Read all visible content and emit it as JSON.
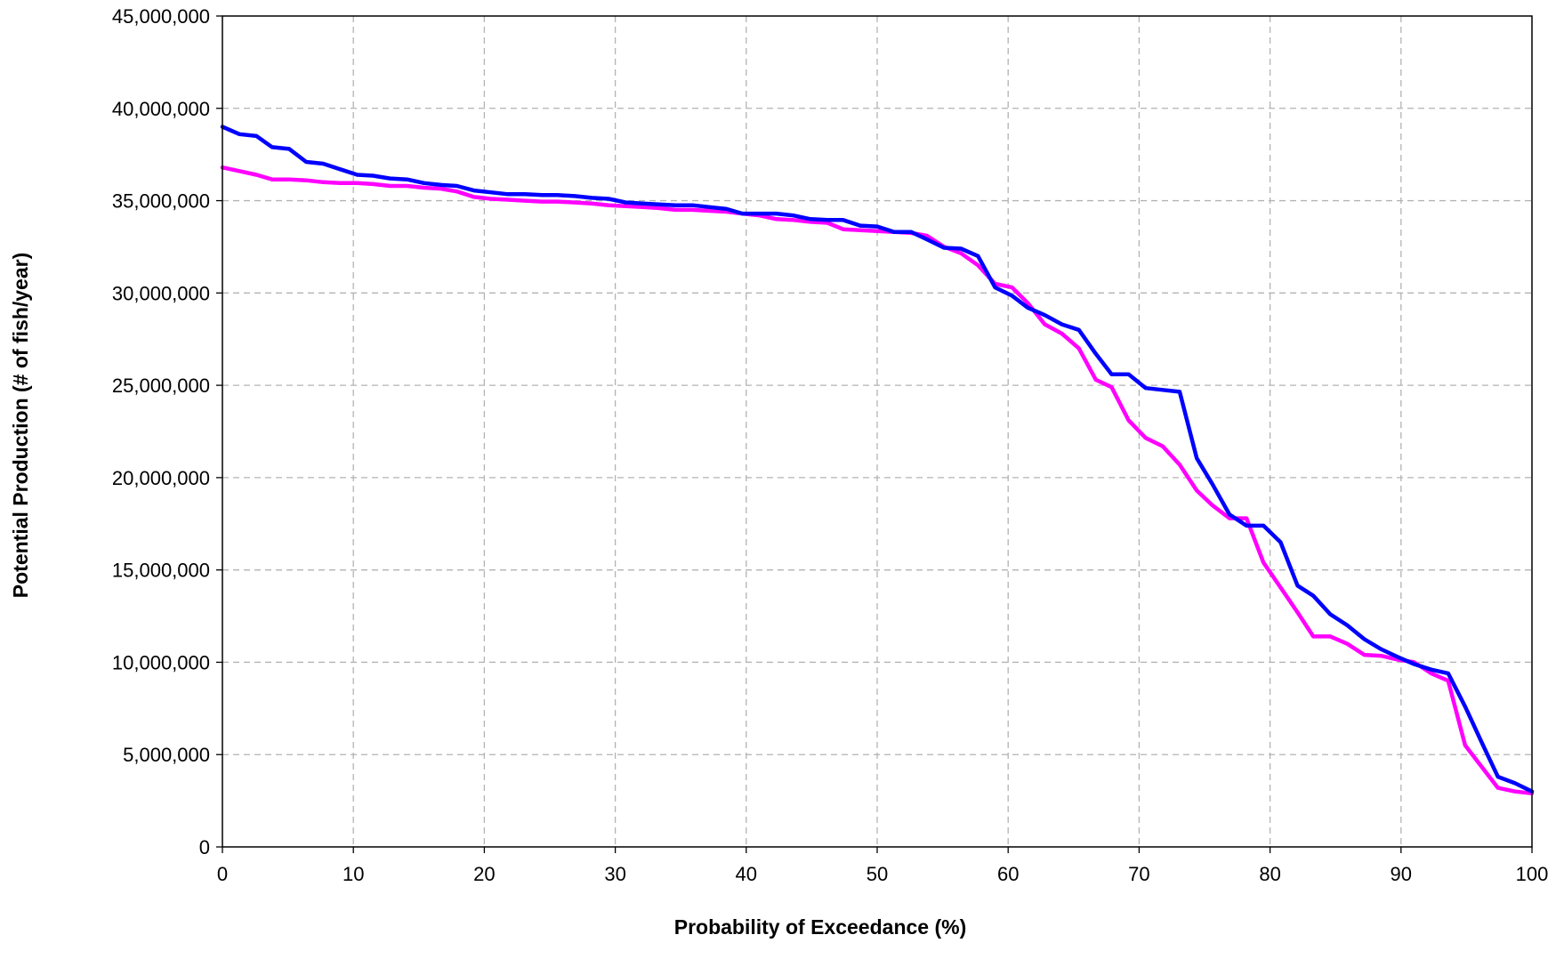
{
  "chart_data": {
    "type": "line",
    "title": "",
    "xlabel": "Probability of Exceedance (%)",
    "ylabel": "Potential Production (# of fish/year)",
    "xlim": [
      0,
      100
    ],
    "ylim": [
      0,
      45000000
    ],
    "xticks": [
      0,
      10,
      20,
      30,
      40,
      50,
      60,
      70,
      80,
      90,
      100
    ],
    "yticks": [
      0,
      5000000,
      10000000,
      15000000,
      20000000,
      25000000,
      30000000,
      35000000,
      40000000,
      45000000
    ],
    "xtick_labels": [
      "0",
      "10",
      "20",
      "30",
      "40",
      "50",
      "60",
      "70",
      "80",
      "90",
      "100"
    ],
    "ytick_labels": [
      "0",
      "5,000,000",
      "10,000,000",
      "15,000,000",
      "20,000,000",
      "25,000,000",
      "30,000,000",
      "35,000,000",
      "40,000,000",
      "45,000,000"
    ],
    "grid": true,
    "legend": "none",
    "series": [
      {
        "color": "#ff00ff",
        "points": [
          [
            0,
            36800000
          ],
          [
            1.3,
            36600000
          ],
          [
            2.6,
            36400000
          ],
          [
            3.8,
            36150000
          ],
          [
            5.1,
            36150000
          ],
          [
            6.4,
            36100000
          ],
          [
            7.7,
            36000000
          ],
          [
            9.0,
            35950000
          ],
          [
            10.3,
            35950000
          ],
          [
            11.5,
            35900000
          ],
          [
            12.8,
            35800000
          ],
          [
            14.1,
            35800000
          ],
          [
            15.4,
            35700000
          ],
          [
            16.7,
            35650000
          ],
          [
            17.9,
            35500000
          ],
          [
            19.2,
            35200000
          ],
          [
            20.5,
            35100000
          ],
          [
            21.8,
            35050000
          ],
          [
            23.1,
            35000000
          ],
          [
            24.4,
            34950000
          ],
          [
            25.6,
            34950000
          ],
          [
            26.9,
            34900000
          ],
          [
            28.2,
            34850000
          ],
          [
            29.5,
            34750000
          ],
          [
            30.8,
            34700000
          ],
          [
            32.1,
            34650000
          ],
          [
            33.3,
            34600000
          ],
          [
            34.6,
            34500000
          ],
          [
            35.9,
            34500000
          ],
          [
            37.2,
            34450000
          ],
          [
            38.5,
            34400000
          ],
          [
            39.7,
            34300000
          ],
          [
            41.0,
            34200000
          ],
          [
            42.3,
            34000000
          ],
          [
            43.6,
            33950000
          ],
          [
            44.9,
            33850000
          ],
          [
            46.2,
            33800000
          ],
          [
            47.4,
            33450000
          ],
          [
            48.7,
            33400000
          ],
          [
            50.0,
            33350000
          ],
          [
            51.3,
            33300000
          ],
          [
            52.6,
            33250000
          ],
          [
            53.8,
            33100000
          ],
          [
            55.1,
            32500000
          ],
          [
            56.4,
            32150000
          ],
          [
            57.7,
            31500000
          ],
          [
            59.0,
            30500000
          ],
          [
            60.3,
            30300000
          ],
          [
            61.5,
            29450000
          ],
          [
            62.8,
            28300000
          ],
          [
            64.1,
            27800000
          ],
          [
            65.4,
            27000000
          ],
          [
            66.7,
            25300000
          ],
          [
            67.9,
            24900000
          ],
          [
            69.2,
            23100000
          ],
          [
            70.5,
            22150000
          ],
          [
            71.8,
            21700000
          ],
          [
            73.1,
            20700000
          ],
          [
            74.4,
            19300000
          ],
          [
            75.6,
            18500000
          ],
          [
            76.9,
            17800000
          ],
          [
            78.2,
            17800000
          ],
          [
            79.5,
            15400000
          ],
          [
            80.8,
            14050000
          ],
          [
            82.1,
            12700000
          ],
          [
            83.3,
            11400000
          ],
          [
            84.6,
            11400000
          ],
          [
            85.9,
            11000000
          ],
          [
            87.2,
            10400000
          ],
          [
            88.5,
            10350000
          ],
          [
            89.7,
            10150000
          ],
          [
            91.0,
            10000000
          ],
          [
            92.3,
            9400000
          ],
          [
            93.6,
            9000000
          ],
          [
            94.9,
            5500000
          ],
          [
            96.2,
            4300000
          ],
          [
            97.4,
            3200000
          ],
          [
            98.7,
            3000000
          ],
          [
            100,
            2900000
          ]
        ]
      },
      {
        "color": "#0000ff",
        "points": [
          [
            0,
            39000000
          ],
          [
            1.3,
            38600000
          ],
          [
            2.6,
            38500000
          ],
          [
            3.8,
            37900000
          ],
          [
            5.1,
            37800000
          ],
          [
            6.4,
            37100000
          ],
          [
            7.7,
            37000000
          ],
          [
            9.0,
            36700000
          ],
          [
            10.3,
            36400000
          ],
          [
            11.5,
            36350000
          ],
          [
            12.8,
            36200000
          ],
          [
            14.1,
            36150000
          ],
          [
            15.4,
            35950000
          ],
          [
            16.7,
            35850000
          ],
          [
            17.9,
            35800000
          ],
          [
            19.2,
            35550000
          ],
          [
            20.5,
            35450000
          ],
          [
            21.8,
            35350000
          ],
          [
            23.1,
            35350000
          ],
          [
            24.4,
            35300000
          ],
          [
            25.6,
            35300000
          ],
          [
            26.9,
            35250000
          ],
          [
            28.2,
            35150000
          ],
          [
            29.5,
            35100000
          ],
          [
            30.8,
            34900000
          ],
          [
            32.1,
            34850000
          ],
          [
            33.3,
            34800000
          ],
          [
            34.6,
            34750000
          ],
          [
            35.9,
            34750000
          ],
          [
            37.2,
            34650000
          ],
          [
            38.5,
            34550000
          ],
          [
            39.7,
            34300000
          ],
          [
            41.0,
            34300000
          ],
          [
            42.3,
            34300000
          ],
          [
            43.6,
            34200000
          ],
          [
            44.9,
            34000000
          ],
          [
            46.2,
            33950000
          ],
          [
            47.4,
            33950000
          ],
          [
            48.7,
            33650000
          ],
          [
            50.0,
            33600000
          ],
          [
            51.3,
            33300000
          ],
          [
            52.6,
            33300000
          ],
          [
            53.8,
            32900000
          ],
          [
            55.1,
            32450000
          ],
          [
            56.4,
            32400000
          ],
          [
            57.7,
            32000000
          ],
          [
            59.0,
            30300000
          ],
          [
            60.3,
            29850000
          ],
          [
            61.5,
            29200000
          ],
          [
            62.8,
            28800000
          ],
          [
            64.1,
            28300000
          ],
          [
            65.4,
            28000000
          ],
          [
            66.7,
            26700000
          ],
          [
            67.9,
            25600000
          ],
          [
            69.2,
            25600000
          ],
          [
            70.5,
            24850000
          ],
          [
            71.8,
            24750000
          ],
          [
            73.1,
            24650000
          ],
          [
            74.4,
            21050000
          ],
          [
            75.6,
            19650000
          ],
          [
            76.9,
            18000000
          ],
          [
            78.2,
            17400000
          ],
          [
            79.5,
            17400000
          ],
          [
            80.8,
            16500000
          ],
          [
            82.1,
            14150000
          ],
          [
            83.3,
            13600000
          ],
          [
            84.6,
            12600000
          ],
          [
            85.9,
            12000000
          ],
          [
            87.2,
            11250000
          ],
          [
            88.5,
            10700000
          ],
          [
            89.7,
            10300000
          ],
          [
            91.0,
            9900000
          ],
          [
            92.3,
            9600000
          ],
          [
            93.6,
            9400000
          ],
          [
            94.9,
            7600000
          ],
          [
            96.2,
            5600000
          ],
          [
            97.4,
            3800000
          ],
          [
            98.7,
            3450000
          ],
          [
            100,
            3000000
          ],
          [
            101.0,
            2900000
          ]
        ]
      }
    ]
  }
}
